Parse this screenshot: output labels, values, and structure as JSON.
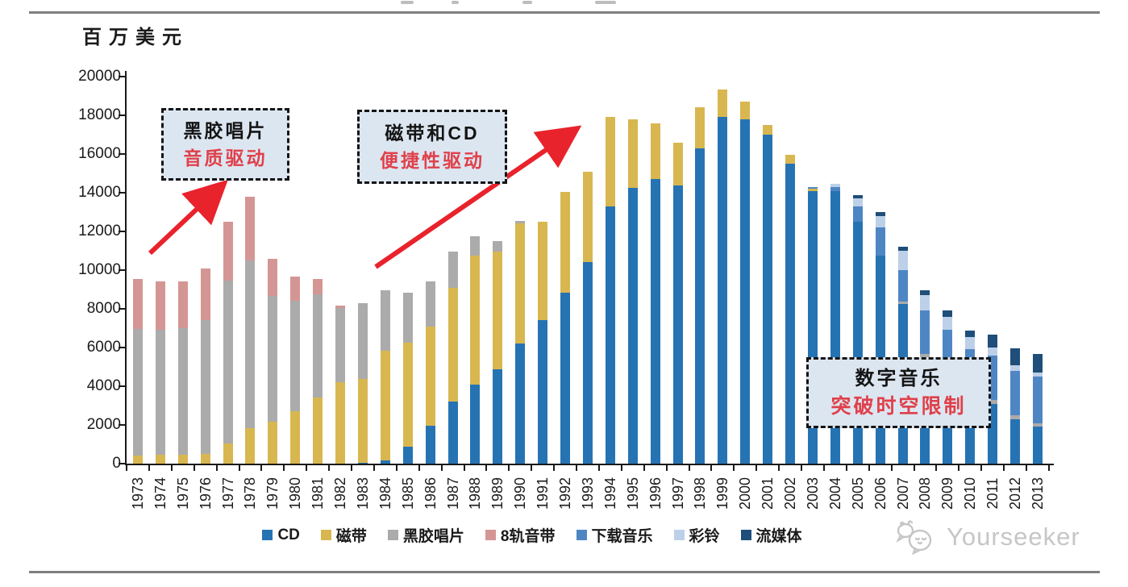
{
  "page": {
    "unit_label": "百万美元"
  },
  "annotations": [
    {
      "id": "vinyl-era",
      "line1": "黑胶唱片",
      "line2": "音质驱动"
    },
    {
      "id": "tape-cd-era",
      "line1": "磁带和CD",
      "line2": "便捷性驱动"
    },
    {
      "id": "digital-era",
      "line1": "数字音乐",
      "line2": "突破时空限制"
    }
  ],
  "watermark": {
    "text": "Yourseeker",
    "icon": "chat-bubbles-cat-icon",
    "color": "#c6c6c6"
  },
  "colors": {
    "arrow_red": "#e8232c",
    "callout_fill": "#dce6f1",
    "callout_red_text": "#e0404a",
    "divider_gray": "#7f7f7f"
  },
  "chart_data": {
    "type": "bar",
    "stacked": true,
    "title": "",
    "xlabel": "",
    "ylabel": "百万美元",
    "ylim": [
      0,
      20000
    ],
    "ytick_step": 2000,
    "grid": false,
    "legend_position": "bottom",
    "categories": [
      1973,
      1974,
      1975,
      1976,
      1977,
      1978,
      1979,
      1980,
      1981,
      1982,
      1983,
      1984,
      1985,
      1986,
      1987,
      1988,
      1989,
      1990,
      1991,
      1992,
      1993,
      1994,
      1995,
      1996,
      1997,
      1998,
      1999,
      2000,
      2001,
      2002,
      2003,
      2004,
      2005,
      2006,
      2007,
      2008,
      2009,
      2010,
      2011,
      2012,
      2013
    ],
    "series": [
      {
        "name": "CD",
        "color": "#2673b3",
        "values": [
          0,
          0,
          0,
          0,
          0,
          0,
          0,
          0,
          0,
          0,
          30,
          170,
          870,
          1950,
          3200,
          4080,
          4870,
          6200,
          7400,
          8830,
          10400,
          13300,
          14250,
          14700,
          14370,
          16300,
          17900,
          17800,
          17000,
          15500,
          14100,
          14100,
          12500,
          10760,
          8240,
          5500,
          4300,
          3400,
          3100,
          2300,
          1900
        ]
      },
      {
        "name": "磁带",
        "color": "#d8b750",
        "values": [
          400,
          450,
          450,
          500,
          1050,
          1830,
          2170,
          2700,
          3400,
          4200,
          4350,
          5660,
          5360,
          5150,
          5900,
          6670,
          6080,
          6200,
          5100,
          5200,
          4700,
          4600,
          3550,
          2900,
          2200,
          2100,
          1450,
          900,
          500,
          450,
          100,
          0,
          0,
          0,
          0,
          0,
          0,
          0,
          0,
          0,
          0
        ]
      },
      {
        "name": "黑胶唱片",
        "color": "#ababab",
        "values": [
          6550,
          6450,
          6550,
          6900,
          8400,
          8670,
          6500,
          5700,
          5350,
          3850,
          3900,
          3130,
          2620,
          2300,
          1860,
          1000,
          550,
          150,
          0,
          0,
          0,
          0,
          0,
          0,
          0,
          0,
          0,
          0,
          0,
          0,
          0,
          0,
          0,
          0,
          150,
          150,
          150,
          150,
          200,
          200,
          200
        ]
      },
      {
        "name": "8轨音带",
        "color": "#d49694",
        "values": [
          2600,
          2500,
          2400,
          2700,
          3050,
          3300,
          1930,
          1270,
          800,
          100,
          0,
          0,
          0,
          0,
          0,
          0,
          0,
          0,
          0,
          0,
          0,
          0,
          0,
          0,
          0,
          0,
          0,
          0,
          0,
          0,
          0,
          0,
          0,
          0,
          0,
          0,
          0,
          0,
          0,
          0,
          0
        ]
      },
      {
        "name": "下载音乐",
        "color": "#4e86c4",
        "values": [
          0,
          0,
          0,
          0,
          0,
          0,
          0,
          0,
          0,
          0,
          0,
          0,
          0,
          0,
          0,
          0,
          0,
          0,
          0,
          0,
          0,
          0,
          0,
          0,
          0,
          0,
          0,
          0,
          0,
          0,
          100,
          200,
          800,
          1450,
          1600,
          2250,
          2450,
          2380,
          2300,
          2300,
          2400
        ]
      },
      {
        "name": "彩铃",
        "color": "#bdd0e9",
        "values": [
          0,
          0,
          0,
          0,
          0,
          0,
          0,
          0,
          0,
          0,
          0,
          0,
          0,
          0,
          0,
          0,
          0,
          0,
          0,
          0,
          0,
          0,
          0,
          0,
          0,
          0,
          0,
          0,
          0,
          0,
          0,
          150,
          400,
          600,
          1000,
          800,
          700,
          600,
          400,
          300,
          200
        ]
      },
      {
        "name": "流媒体",
        "color": "#1e4e79",
        "values": [
          0,
          0,
          0,
          0,
          0,
          0,
          0,
          0,
          0,
          0,
          0,
          0,
          0,
          0,
          0,
          0,
          0,
          0,
          0,
          0,
          0,
          0,
          0,
          0,
          0,
          0,
          0,
          0,
          0,
          0,
          0,
          0,
          170,
          170,
          200,
          250,
          300,
          350,
          650,
          850,
          950
        ]
      }
    ]
  }
}
